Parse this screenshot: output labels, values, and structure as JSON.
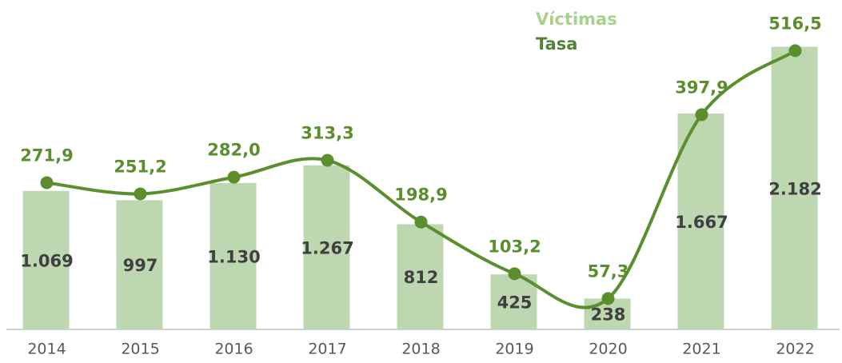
{
  "chart_data": {
    "type": "bar_line",
    "categories": [
      "2014",
      "2015",
      "2016",
      "2017",
      "2018",
      "2019",
      "2020",
      "2021",
      "2022"
    ],
    "series": [
      {
        "name": "Víctimas",
        "type": "bar",
        "color": "#bdd7b0",
        "label_color": "#a9d18e",
        "values": [
          1069,
          997,
          1130,
          1267,
          812,
          425,
          238,
          1667,
          2182
        ],
        "value_labels": [
          "1.069",
          "997",
          "1.130",
          "1.267",
          "812",
          "425",
          "238",
          "1.667",
          "2.182"
        ]
      },
      {
        "name": "Tasa",
        "type": "line",
        "axis": "y2",
        "color": "#5b8f2e",
        "label_color": "#548235",
        "values": [
          271.9,
          251.2,
          282.0,
          313.3,
          198.9,
          103.2,
          57.3,
          397.9,
          516.5
        ],
        "value_labels": [
          "271,9",
          "251,2",
          "282,0",
          "313,3",
          "198,9",
          "103,2",
          "57,3",
          "397,9",
          "516,5"
        ]
      }
    ],
    "ylim": [
      0,
      2500
    ],
    "y2lim": [
      0,
      600
    ],
    "grid": false,
    "smooth": true
  }
}
